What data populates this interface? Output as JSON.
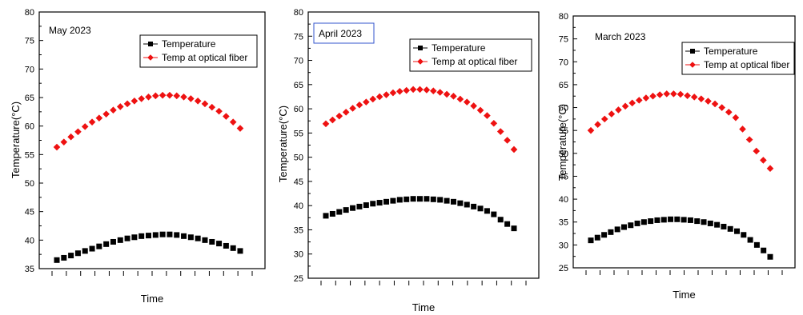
{
  "chart_data": [
    {
      "type": "scatter",
      "title": "May 2023",
      "xlabel": "Time",
      "ylabel": "Temperature(°C)",
      "ylim": [
        35,
        80
      ],
      "yticks": [
        35,
        40,
        45,
        50,
        55,
        60,
        65,
        70,
        75,
        80
      ],
      "legend_position": "top-right",
      "grid": false,
      "series": [
        {
          "name": "Temperature",
          "color": "#000000",
          "marker": "square",
          "values": [
            36.5,
            36.9,
            37.3,
            37.7,
            38.1,
            38.5,
            38.9,
            39.3,
            39.7,
            40.0,
            40.3,
            40.5,
            40.7,
            40.8,
            40.9,
            41.0,
            41.0,
            40.9,
            40.7,
            40.5,
            40.3,
            40.0,
            39.7,
            39.4,
            39.0,
            38.6,
            38.1
          ]
        },
        {
          "name": "Temp at  optical fiber",
          "color": "#ee1111",
          "marker": "diamond",
          "values": [
            56.3,
            57.2,
            58.1,
            59.0,
            59.9,
            60.7,
            61.4,
            62.1,
            62.8,
            63.4,
            63.9,
            64.4,
            64.8,
            65.1,
            65.3,
            65.4,
            65.4,
            65.3,
            65.1,
            64.8,
            64.4,
            63.9,
            63.3,
            62.6,
            61.7,
            60.7,
            59.6
          ]
        }
      ]
    },
    {
      "type": "scatter",
      "title": "April 2023",
      "xlabel": "Time",
      "ylabel": "Temperature(°C)",
      "ylim": [
        25,
        80
      ],
      "yticks": [
        25,
        30,
        35,
        40,
        45,
        50,
        55,
        60,
        65,
        70,
        75,
        80
      ],
      "legend_position": "top-right",
      "grid": false,
      "series": [
        {
          "name": "Temperature",
          "color": "#000000",
          "marker": "square",
          "values": [
            37.9,
            38.3,
            38.7,
            39.1,
            39.5,
            39.8,
            40.1,
            40.4,
            40.6,
            40.8,
            41.0,
            41.2,
            41.3,
            41.4,
            41.4,
            41.4,
            41.3,
            41.2,
            41.0,
            40.8,
            40.5,
            40.2,
            39.8,
            39.4,
            38.9,
            38.2,
            37.1,
            36.2,
            35.3
          ]
        },
        {
          "name": "Temp at  optical fiber",
          "color": "#ee1111",
          "marker": "diamond",
          "values": [
            56.9,
            57.7,
            58.5,
            59.3,
            60.1,
            60.8,
            61.4,
            62.0,
            62.5,
            62.9,
            63.3,
            63.6,
            63.8,
            64.0,
            64.0,
            63.9,
            63.7,
            63.4,
            63.0,
            62.6,
            62.0,
            61.4,
            60.6,
            59.7,
            58.6,
            57.0,
            55.3,
            53.5,
            51.6
          ]
        }
      ]
    },
    {
      "type": "scatter",
      "title": "March 2023",
      "xlabel": "Time",
      "ylabel": "Temperature(°C)",
      "ylim": [
        25,
        80
      ],
      "yticks": [
        25,
        30,
        35,
        40,
        45,
        50,
        55,
        60,
        65,
        70,
        75,
        80
      ],
      "legend_position": "top-right",
      "grid": false,
      "series": [
        {
          "name": "Temperature",
          "color": "#000000",
          "marker": "square",
          "values": [
            31.0,
            31.6,
            32.2,
            32.8,
            33.4,
            33.9,
            34.3,
            34.7,
            35.0,
            35.2,
            35.4,
            35.5,
            35.6,
            35.6,
            35.5,
            35.4,
            35.2,
            35.0,
            34.7,
            34.4,
            34.0,
            33.5,
            33.0,
            32.2,
            31.1,
            30.0,
            28.8,
            27.4
          ]
        },
        {
          "name": "Temp at  optical fiber",
          "color": "#ee1111",
          "marker": "diamond",
          "values": [
            55.0,
            56.3,
            57.5,
            58.6,
            59.5,
            60.3,
            61.0,
            61.6,
            62.1,
            62.5,
            62.8,
            63.0,
            63.0,
            62.9,
            62.6,
            62.3,
            61.9,
            61.4,
            60.8,
            60.0,
            59.0,
            57.8,
            55.3,
            53.0,
            50.5,
            48.5,
            46.7
          ]
        }
      ]
    }
  ]
}
